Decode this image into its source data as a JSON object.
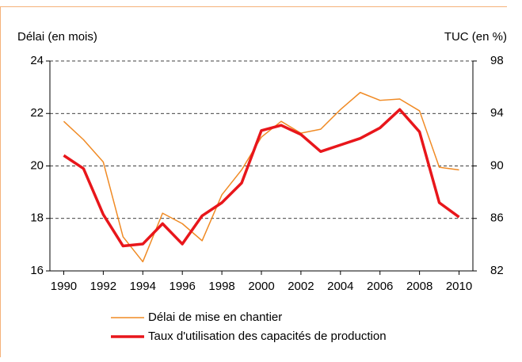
{
  "chart_data": {
    "type": "line",
    "y_label": "Délai (en mois)",
    "y2_label": "TUC (en %)",
    "x": [
      1990,
      1991,
      1992,
      1993,
      1994,
      1995,
      1996,
      1997,
      1998,
      1999,
      2000,
      2001,
      2002,
      2003,
      2004,
      2005,
      2006,
      2007,
      2008,
      2009,
      2010
    ],
    "xlim": [
      1989.3,
      2010.7
    ],
    "xticks": [
      1990,
      1992,
      1994,
      1996,
      1998,
      2000,
      2002,
      2004,
      2006,
      2008,
      2010
    ],
    "ylim": [
      16,
      24
    ],
    "yticks": [
      16,
      18,
      20,
      22,
      24
    ],
    "y2lim": [
      82,
      98
    ],
    "y2ticks": [
      82,
      86,
      90,
      94,
      98
    ],
    "grid": true,
    "legend": "bottom",
    "series": [
      {
        "name": "Délai de mise en chantier",
        "color": "#f08a24",
        "width": 1.5,
        "values": [
          21.7,
          21.0,
          20.15,
          17.3,
          16.35,
          18.2,
          17.8,
          17.15,
          18.9,
          19.85,
          21.1,
          21.7,
          21.25,
          21.4,
          22.15,
          22.8,
          22.5,
          22.55,
          22.1,
          19.95,
          19.85
        ]
      },
      {
        "name": "Taux d'utilisation des capacités de production",
        "color": "#e8161b",
        "width": 3.5,
        "axis": "y2",
        "values": [
          90.8,
          89.8,
          86.3,
          83.9,
          84.05,
          85.6,
          84.05,
          86.2,
          87.2,
          88.7,
          92.7,
          93.1,
          92.4,
          91.1,
          91.6,
          92.1,
          92.9,
          94.3,
          92.6,
          87.2,
          86.1
        ]
      }
    ]
  }
}
